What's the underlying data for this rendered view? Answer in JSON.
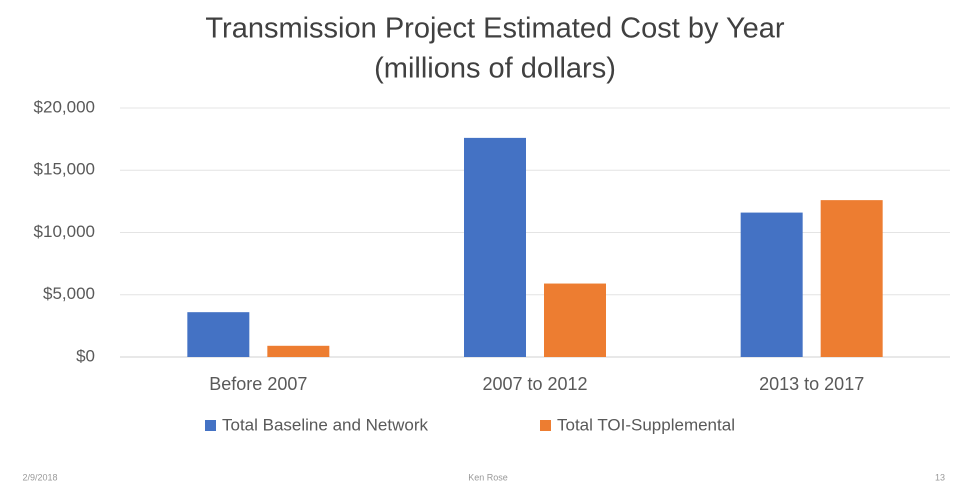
{
  "chart_data": {
    "type": "bar",
    "title": "Transmission Project Estimated Cost by Year",
    "subtitle": "(millions of dollars)",
    "categories": [
      "Before 2007",
      "2007 to 2012",
      "2013 to 2017"
    ],
    "series": [
      {
        "name": "Total Baseline and Network",
        "color": "#4472c4",
        "values": [
          3600,
          17600,
          11600
        ]
      },
      {
        "name": "Total TOI-Supplemental",
        "color": "#ed7d31",
        "values": [
          900,
          5900,
          12600
        ]
      }
    ],
    "ylim": [
      0,
      20000
    ],
    "yticks": [
      {
        "value": 0,
        "label": "$0"
      },
      {
        "value": 5000,
        "label": "$5,000"
      },
      {
        "value": 10000,
        "label": "$10,000"
      },
      {
        "value": 15000,
        "label": "$15,000"
      },
      {
        "value": 20000,
        "label": "$20,000"
      }
    ],
    "grid": true,
    "legend": "bottom"
  },
  "footer": {
    "date": "2/9/2018",
    "author": "Ken Rose",
    "page": "13"
  }
}
